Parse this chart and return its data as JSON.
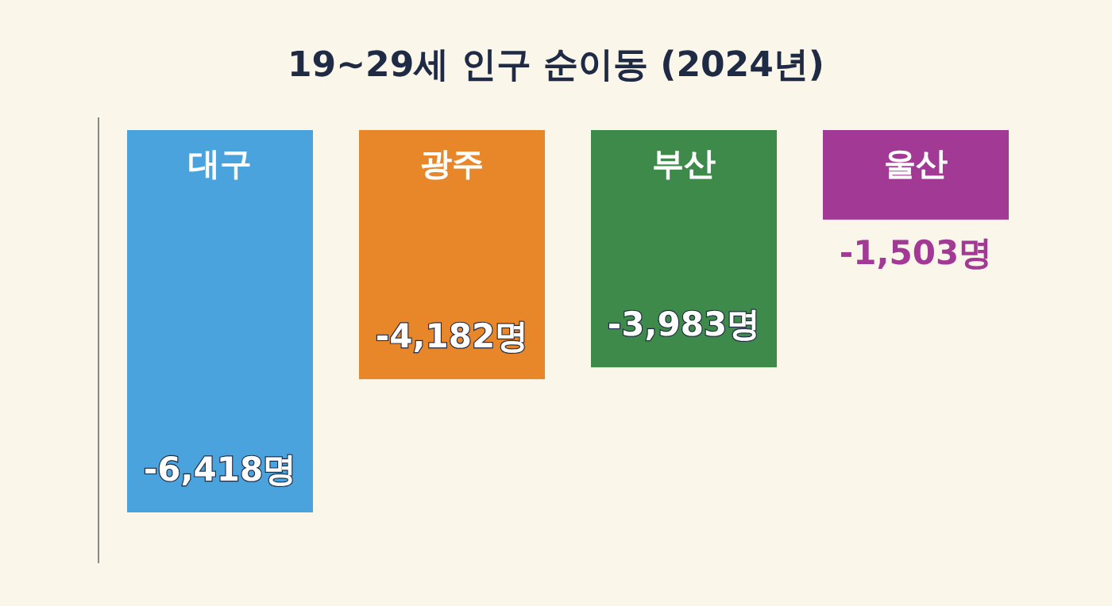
{
  "chart_data": {
    "type": "bar",
    "title": "19~29세 인구 순이동 (2024년)",
    "categories": [
      "대구",
      "광주",
      "부산",
      "울산"
    ],
    "values": [
      -6418,
      -4182,
      -3983,
      -1503
    ],
    "colors": [
      "#4aa3dc",
      "#e8862a",
      "#3d8a4a",
      "#a23a95"
    ],
    "value_labels": [
      "-6,418명",
      "-4,182명",
      "-3,983명",
      "-1,503명"
    ]
  }
}
